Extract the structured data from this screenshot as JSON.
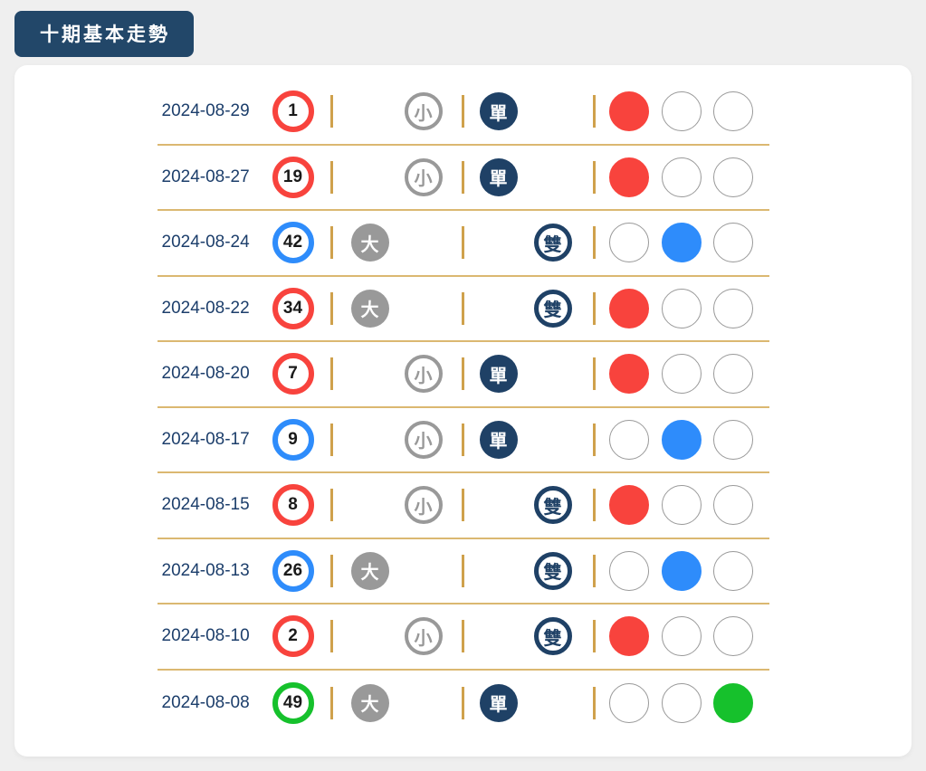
{
  "header": {
    "title_badge": "十期基本走勢"
  },
  "labels": {
    "big": "大",
    "small": "小",
    "odd": "單",
    "even": "雙"
  },
  "colors": {
    "red": "#f8433d",
    "blue": "#2e8cfb",
    "green": "#16c12c",
    "navy": "#1f4166",
    "gray": "#999999",
    "separator_gold": "#cfa14c",
    "divider_gold": "#dbb871",
    "page_background": "#efefef",
    "card_background": "#ffffff"
  },
  "rows": [
    {
      "date": "2024-08-29",
      "number": "1",
      "number_color": "red",
      "size": "small",
      "parity": "odd",
      "color": "red"
    },
    {
      "date": "2024-08-27",
      "number": "19",
      "number_color": "red",
      "size": "small",
      "parity": "odd",
      "color": "red"
    },
    {
      "date": "2024-08-24",
      "number": "42",
      "number_color": "blue",
      "size": "big",
      "parity": "even",
      "color": "blue"
    },
    {
      "date": "2024-08-22",
      "number": "34",
      "number_color": "red",
      "size": "big",
      "parity": "even",
      "color": "red"
    },
    {
      "date": "2024-08-20",
      "number": "7",
      "number_color": "red",
      "size": "small",
      "parity": "odd",
      "color": "red"
    },
    {
      "date": "2024-08-17",
      "number": "9",
      "number_color": "blue",
      "size": "small",
      "parity": "odd",
      "color": "blue"
    },
    {
      "date": "2024-08-15",
      "number": "8",
      "number_color": "red",
      "size": "small",
      "parity": "even",
      "color": "red"
    },
    {
      "date": "2024-08-13",
      "number": "26",
      "number_color": "blue",
      "size": "big",
      "parity": "even",
      "color": "blue"
    },
    {
      "date": "2024-08-10",
      "number": "2",
      "number_color": "red",
      "size": "small",
      "parity": "even",
      "color": "red"
    },
    {
      "date": "2024-08-08",
      "number": "49",
      "number_color": "green",
      "size": "big",
      "parity": "odd",
      "color": "green"
    }
  ]
}
